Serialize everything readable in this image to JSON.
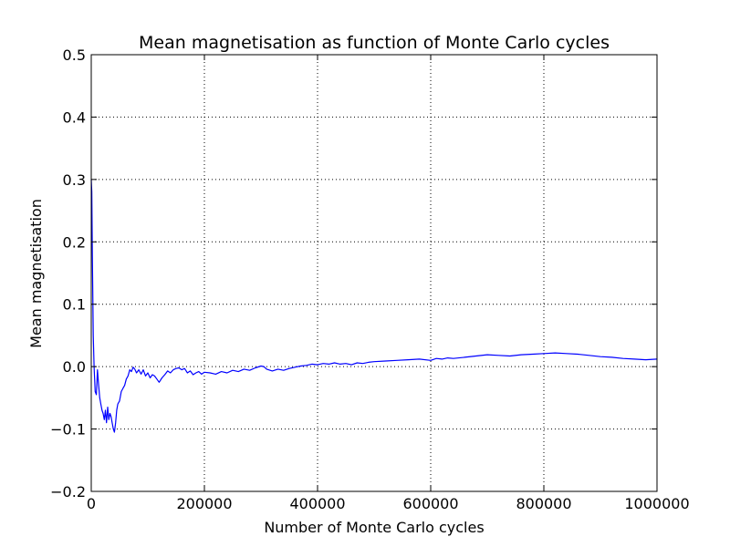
{
  "chart_data": {
    "type": "line",
    "title": "Mean magnetisation as function of Monte Carlo cycles",
    "xlabel": "Number of Monte Carlo cycles",
    "ylabel": "Mean magnetisation",
    "xlim": [
      0,
      1000000
    ],
    "ylim": [
      -0.2,
      0.5
    ],
    "grid": true,
    "grid_style": "dotted",
    "line_color": "#0000ff",
    "x_ticks": [
      0,
      200000,
      400000,
      600000,
      800000,
      1000000
    ],
    "x_tick_labels": [
      "0",
      "200000",
      "400000",
      "600000",
      "800000",
      "1000000"
    ],
    "y_ticks": [
      -0.2,
      -0.1,
      0.0,
      0.1,
      0.2,
      0.3,
      0.4,
      0.5
    ],
    "y_tick_labels": [
      "−0.2",
      "−0.1",
      "0.0",
      "0.1",
      "0.2",
      "0.3",
      "0.4",
      "0.5"
    ],
    "series": [
      {
        "x": [
          0,
          1000,
          2000,
          3500,
          5000,
          7000,
          9000,
          11000,
          13000,
          15000,
          17000,
          19000,
          21000,
          23000,
          25000,
          27000,
          29000,
          31000,
          33000,
          35000,
          37000,
          39000,
          41000,
          43000,
          45000,
          47000,
          50000,
          53000,
          56000,
          59000,
          62000,
          65000,
          68000,
          71000,
          74000,
          77000,
          80000,
          84000,
          88000,
          92000,
          96000,
          100000,
          104000,
          108000,
          112000,
          116000,
          120000,
          125000,
          130000,
          135000,
          140000,
          145000,
          150000,
          155000,
          160000,
          165000,
          170000,
          175000,
          180000,
          185000,
          190000,
          195000,
          200000,
          210000,
          220000,
          230000,
          240000,
          250000,
          260000,
          270000,
          280000,
          290000,
          300000,
          305000,
          310000,
          320000,
          330000,
          340000,
          350000,
          360000,
          370000,
          380000,
          390000,
          400000,
          410000,
          420000,
          430000,
          440000,
          450000,
          460000,
          470000,
          480000,
          490000,
          500000,
          520000,
          540000,
          560000,
          580000,
          600000,
          610000,
          620000,
          630000,
          640000,
          660000,
          680000,
          700000,
          720000,
          740000,
          760000,
          780000,
          800000,
          820000,
          840000,
          860000,
          880000,
          900000,
          920000,
          940000,
          960000,
          980000,
          1000000
        ],
        "y": [
          0.3,
          0.28,
          0.18,
          0.05,
          0.0,
          -0.04,
          -0.045,
          -0.005,
          -0.03,
          -0.05,
          -0.06,
          -0.07,
          -0.075,
          -0.085,
          -0.07,
          -0.09,
          -0.065,
          -0.085,
          -0.075,
          -0.08,
          -0.09,
          -0.1,
          -0.105,
          -0.09,
          -0.07,
          -0.06,
          -0.055,
          -0.04,
          -0.035,
          -0.03,
          -0.02,
          -0.015,
          -0.005,
          -0.008,
          -0.001,
          -0.004,
          -0.01,
          -0.005,
          -0.012,
          -0.005,
          -0.015,
          -0.01,
          -0.018,
          -0.013,
          -0.015,
          -0.02,
          -0.025,
          -0.018,
          -0.013,
          -0.007,
          -0.01,
          -0.005,
          -0.003,
          -0.002,
          -0.005,
          -0.003,
          -0.01,
          -0.007,
          -0.013,
          -0.01,
          -0.008,
          -0.012,
          -0.009,
          -0.01,
          -0.012,
          -0.008,
          -0.01,
          -0.006,
          -0.008,
          -0.004,
          -0.006,
          -0.002,
          0.001,
          0.0,
          -0.004,
          -0.007,
          -0.004,
          -0.006,
          -0.003,
          -0.001,
          0.001,
          0.002,
          0.004,
          0.003,
          0.005,
          0.004,
          0.006,
          0.004,
          0.005,
          0.003,
          0.006,
          0.005,
          0.007,
          0.008,
          0.009,
          0.01,
          0.011,
          0.012,
          0.01,
          0.013,
          0.012,
          0.014,
          0.013,
          0.015,
          0.017,
          0.019,
          0.018,
          0.017,
          0.019,
          0.02,
          0.021,
          0.022,
          0.021,
          0.02,
          0.018,
          0.016,
          0.015,
          0.013,
          0.012,
          0.011,
          0.012
        ]
      }
    ]
  }
}
